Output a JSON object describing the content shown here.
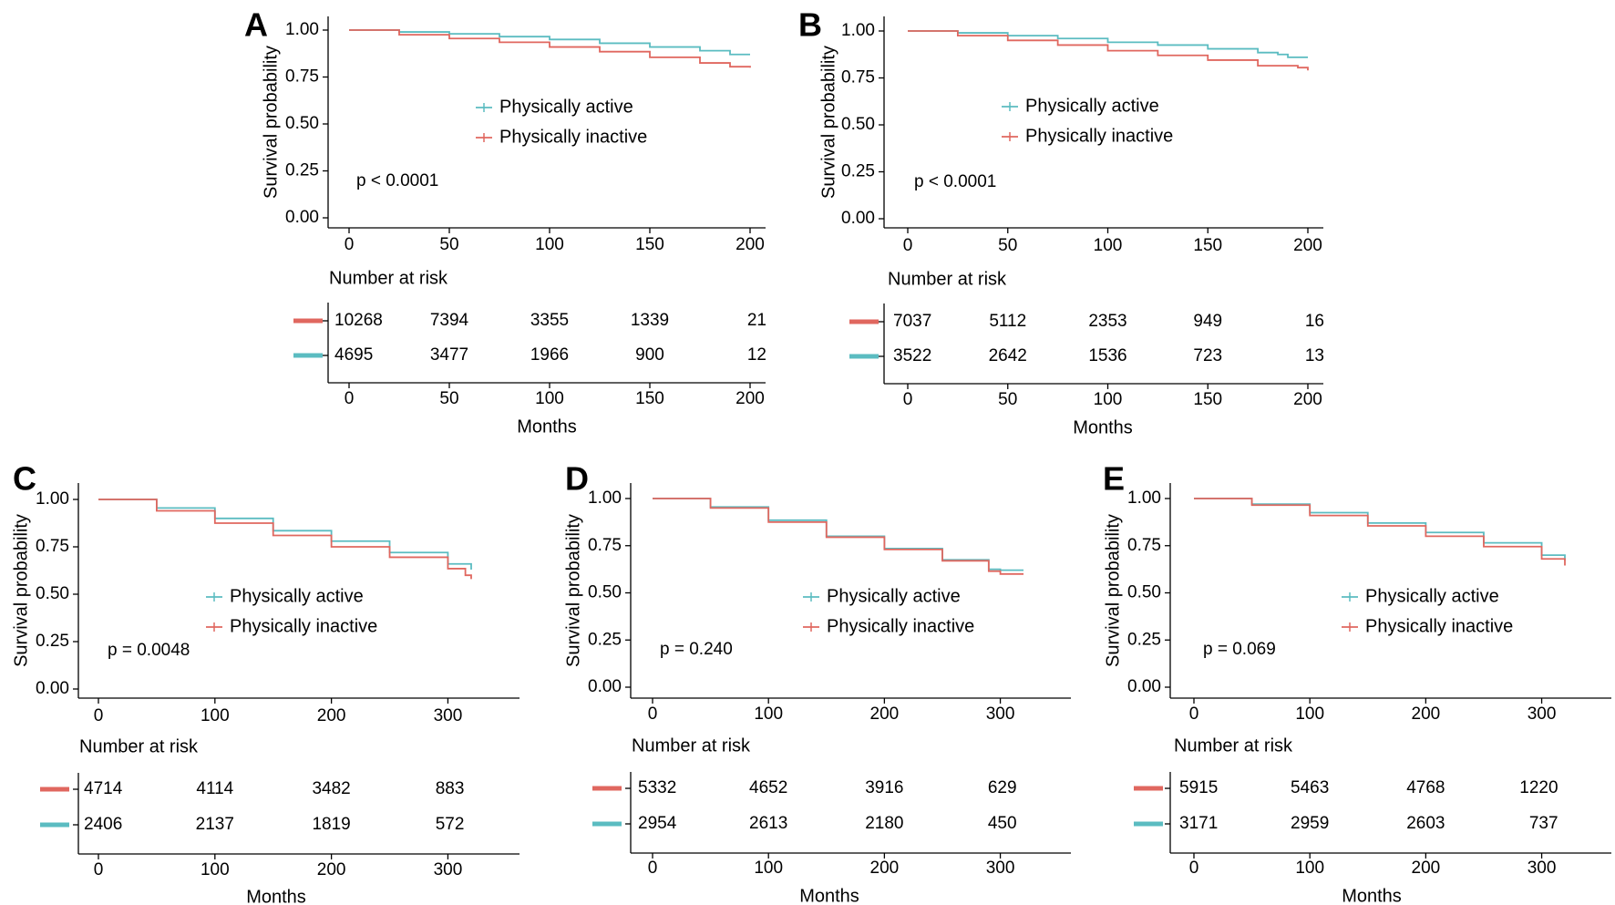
{
  "colors": {
    "active": "#5bbcc1",
    "inactive": "#e0675f",
    "axis": "#000000"
  },
  "risk_table_title": "Number at risk",
  "chart_data": [
    {
      "panel": "A",
      "type": "line",
      "ylabel": "Survival probability",
      "xlabel": "Months",
      "xlim": [
        0,
        200
      ],
      "xticks": [
        0,
        50,
        100,
        150,
        200
      ],
      "ylim": [
        0,
        1
      ],
      "yticks": [
        "0.00",
        "0.25",
        "0.50",
        "0.75",
        "1.00"
      ],
      "legend": [
        "Physically active",
        "Physically inactive"
      ],
      "pvalue": "p < 0.0001",
      "series": [
        {
          "name": "Physically active",
          "x": [
            0,
            25,
            50,
            75,
            100,
            125,
            150,
            175,
            190,
            200
          ],
          "y": [
            1.0,
            0.99,
            0.98,
            0.965,
            0.95,
            0.93,
            0.91,
            0.89,
            0.87,
            0.87
          ]
        },
        {
          "name": "Physically inactive",
          "x": [
            0,
            25,
            50,
            75,
            100,
            125,
            150,
            175,
            190,
            200
          ],
          "y": [
            1.0,
            0.975,
            0.955,
            0.935,
            0.91,
            0.885,
            0.855,
            0.825,
            0.805,
            0.8
          ]
        }
      ],
      "risk_table": {
        "times": [
          0,
          50,
          100,
          150,
          200
        ],
        "rows": [
          {
            "group": "Physically inactive",
            "values": [
              "10268",
              "7394",
              "3355",
              "1339",
              "21"
            ]
          },
          {
            "group": "Physically active",
            "values": [
              "4695",
              "3477",
              "1966",
              "900",
              "12"
            ]
          }
        ]
      }
    },
    {
      "panel": "B",
      "type": "line",
      "ylabel": "Survival probability",
      "xlabel": "Months",
      "xlim": [
        0,
        200
      ],
      "xticks": [
        0,
        50,
        100,
        150,
        200
      ],
      "ylim": [
        0,
        1
      ],
      "yticks": [
        "0.00",
        "0.25",
        "0.50",
        "0.75",
        "1.00"
      ],
      "legend": [
        "Physically active",
        "Physically inactive"
      ],
      "pvalue": "p < 0.0001",
      "series": [
        {
          "name": "Physically active",
          "x": [
            0,
            25,
            50,
            75,
            100,
            125,
            150,
            175,
            185,
            190,
            200
          ],
          "y": [
            1.0,
            0.99,
            0.975,
            0.96,
            0.94,
            0.925,
            0.905,
            0.885,
            0.875,
            0.86,
            0.86
          ]
        },
        {
          "name": "Physically inactive",
          "x": [
            0,
            25,
            50,
            75,
            100,
            125,
            150,
            175,
            195,
            200
          ],
          "y": [
            1.0,
            0.975,
            0.95,
            0.925,
            0.895,
            0.87,
            0.845,
            0.815,
            0.805,
            0.79
          ]
        }
      ],
      "risk_table": {
        "times": [
          0,
          50,
          100,
          150,
          200
        ],
        "rows": [
          {
            "group": "Physically inactive",
            "values": [
              "7037",
              "5112",
              "2353",
              "949",
              "16"
            ]
          },
          {
            "group": "Physically active",
            "values": [
              "3522",
              "2642",
              "1536",
              "723",
              "13"
            ]
          }
        ]
      }
    },
    {
      "panel": "C",
      "type": "line",
      "ylabel": "Survival probability",
      "xlabel": "Months",
      "xlim": [
        0,
        320
      ],
      "xticks": [
        0,
        100,
        200,
        300
      ],
      "ylim": [
        0,
        1
      ],
      "yticks": [
        "0.00",
        "0.25",
        "0.50",
        "0.75",
        "1.00"
      ],
      "legend": [
        "Physically active",
        "Physically inactive"
      ],
      "pvalue": "p = 0.0048",
      "series": [
        {
          "name": "Physically active",
          "x": [
            0,
            50,
            100,
            150,
            200,
            250,
            300,
            320
          ],
          "y": [
            1.0,
            0.955,
            0.9,
            0.835,
            0.78,
            0.72,
            0.66,
            0.63
          ]
        },
        {
          "name": "Physically inactive",
          "x": [
            0,
            50,
            100,
            150,
            200,
            250,
            300,
            315,
            320
          ],
          "y": [
            1.0,
            0.94,
            0.875,
            0.81,
            0.75,
            0.695,
            0.635,
            0.6,
            0.58
          ]
        }
      ],
      "risk_table": {
        "times": [
          0,
          100,
          200,
          300
        ],
        "rows": [
          {
            "group": "Physically inactive",
            "values": [
              "4714",
              "4114",
              "3482",
              "883"
            ]
          },
          {
            "group": "Physically active",
            "values": [
              "2406",
              "2137",
              "1819",
              "572"
            ]
          }
        ]
      }
    },
    {
      "panel": "D",
      "type": "line",
      "ylabel": "Survival probability",
      "xlabel": "Months",
      "xlim": [
        0,
        320
      ],
      "xticks": [
        0,
        100,
        200,
        300
      ],
      "ylim": [
        0,
        1
      ],
      "yticks": [
        "0.00",
        "0.25",
        "0.50",
        "0.75",
        "1.00"
      ],
      "legend": [
        "Physically active",
        "Physically inactive"
      ],
      "pvalue": "p = 0.240",
      "series": [
        {
          "name": "Physically active",
          "x": [
            0,
            50,
            100,
            150,
            200,
            250,
            290,
            300,
            320
          ],
          "y": [
            1.0,
            0.955,
            0.885,
            0.8,
            0.735,
            0.675,
            0.625,
            0.62,
            0.62
          ]
        },
        {
          "name": "Physically inactive",
          "x": [
            0,
            50,
            100,
            150,
            200,
            250,
            290,
            300,
            320
          ],
          "y": [
            1.0,
            0.95,
            0.875,
            0.795,
            0.73,
            0.67,
            0.615,
            0.6,
            0.6
          ]
        }
      ],
      "risk_table": {
        "times": [
          0,
          100,
          200,
          300
        ],
        "rows": [
          {
            "group": "Physically inactive",
            "values": [
              "5332",
              "4652",
              "3916",
              "629"
            ]
          },
          {
            "group": "Physically active",
            "values": [
              "2954",
              "2613",
              "2180",
              "450"
            ]
          }
        ]
      }
    },
    {
      "panel": "E",
      "type": "line",
      "ylabel": "Survival probability",
      "xlabel": "Months",
      "xlim": [
        0,
        320
      ],
      "xticks": [
        0,
        100,
        200,
        300
      ],
      "ylim": [
        0,
        1
      ],
      "yticks": [
        "0.00",
        "0.25",
        "0.50",
        "0.75",
        "1.00"
      ],
      "legend": [
        "Physically active",
        "Physically inactive"
      ],
      "pvalue": "p = 0.069",
      "series": [
        {
          "name": "Physically active",
          "x": [
            0,
            50,
            100,
            150,
            200,
            250,
            300,
            320
          ],
          "y": [
            1.0,
            0.97,
            0.925,
            0.87,
            0.82,
            0.765,
            0.7,
            0.67
          ]
        },
        {
          "name": "Physically inactive",
          "x": [
            0,
            50,
            100,
            150,
            200,
            250,
            300,
            320
          ],
          "y": [
            1.0,
            0.965,
            0.91,
            0.855,
            0.8,
            0.745,
            0.68,
            0.645
          ]
        }
      ],
      "risk_table": {
        "times": [
          0,
          100,
          200,
          300
        ],
        "rows": [
          {
            "group": "Physically inactive",
            "values": [
              "5915",
              "5463",
              "4768",
              "1220"
            ]
          },
          {
            "group": "Physically active",
            "values": [
              "3171",
              "2959",
              "2603",
              "737"
            ]
          }
        ]
      }
    }
  ]
}
